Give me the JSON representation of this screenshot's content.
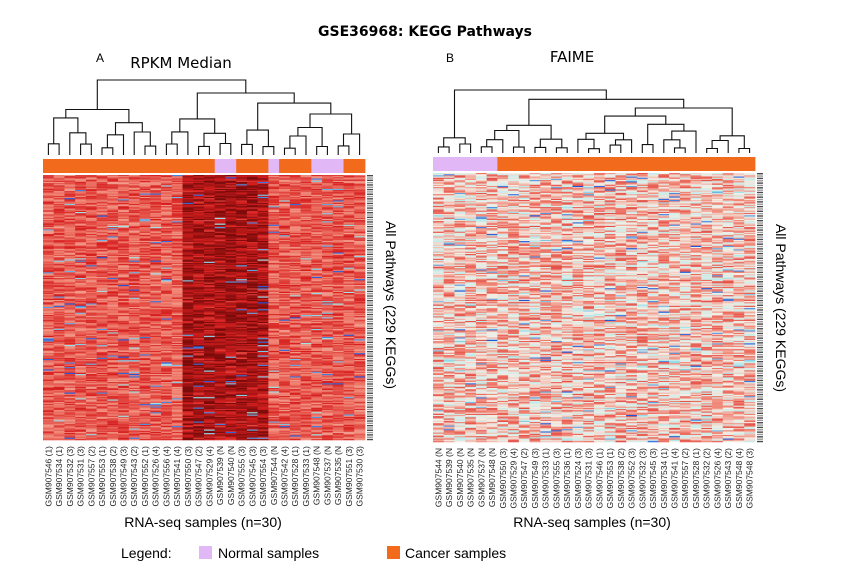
{
  "title": "GSE36968: KEGG Pathways",
  "legend": {
    "heading": "Legend:",
    "items": [
      {
        "label": "Normal samples",
        "color": "#e2b7f5",
        "key": "N"
      },
      {
        "label": "Cancer samples",
        "color": "#f26a1b",
        "key": "C"
      }
    ]
  },
  "chart_data": [
    {
      "type": "heatmap",
      "panel_letter": "A",
      "title": "RPKM Median",
      "xlabel": "RNA-seq samples (n=30)",
      "ylabel": "All Pathways (229 KEGGs)",
      "rows": 229,
      "color_scale": [
        "#1f4fd6",
        "#9fe6ea",
        "#f4efe6",
        "#f08070",
        "#d71f1f",
        "#7a0a0a"
      ],
      "samples": [
        "GSM907546 (1)",
        "GSM907534 (1)",
        "GSM907532 (3)",
        "GSM907531 (3)",
        "GSM907557 (2)",
        "GSM907553 (1)",
        "GSM907538 (2)",
        "GSM907549 (3)",
        "GSM907543 (2)",
        "GSM907552 (1)",
        "GSM907526 (4)",
        "GSM907556 (4)",
        "GSM907541 (4)",
        "GSM907550 (3)",
        "GSM907547 (2)",
        "GSM907529 (4)",
        "GSM907539 (N",
        "GSM907540 (N",
        "GSM907555 (3)",
        "GSM907545 (3)",
        "GSM907554 (3)",
        "GSM907544 (N",
        "GSM907542 (4)",
        "GSM907528 (1)",
        "GSM907533 (1)",
        "GSM907548 (N",
        "GSM907537 (N",
        "GSM907535 (N",
        "GSM907551 (3)",
        "GSM907530 (3)"
      ],
      "sample_group": [
        "C",
        "C",
        "C",
        "C",
        "C",
        "C",
        "C",
        "C",
        "C",
        "C",
        "C",
        "C",
        "C",
        "C",
        "C",
        "C",
        "N",
        "N",
        "C",
        "C",
        "C",
        "N",
        "C",
        "C",
        "C",
        "N",
        "N",
        "N",
        "C",
        "C"
      ]
    },
    {
      "type": "heatmap",
      "panel_letter": "B",
      "title": "FAIME",
      "xlabel": "RNA-seq samples (n=30)",
      "ylabel": "All Pathways (229 KEGGs)",
      "rows": 229,
      "color_scale": [
        "#1f4fd6",
        "#9fe6ea",
        "#f4efe6",
        "#f08070",
        "#d71f1f",
        "#7a0a0a"
      ],
      "samples": [
        "GSM907544 (N",
        "GSM907539 (N",
        "GSM907540 (N",
        "GSM907535 (N",
        "GSM907537 (N",
        "GSM907548 (N",
        "GSM907550 (3)",
        "GSM907529 (4)",
        "GSM907547 (2)",
        "GSM907549 (3)",
        "GSM907533 (1)",
        "GSM907555 (3)",
        "GSM907536 (1)",
        "GSM907524 (3)",
        "GSM907531 (3)",
        "GSM907546 (1)",
        "GSM907553 (1)",
        "GSM907538 (2)",
        "GSM907552 (3)",
        "GSM907532 (3)",
        "GSM907545 (3)",
        "GSM907534 (1)",
        "GSM907541 (4)",
        "GSM907557 (2)",
        "GSM907528 (1)",
        "GSM907532 (2)",
        "GSM907526 (4)",
        "GSM907543 (2)",
        "GSM907548 (4)",
        "GSM907548 (3)"
      ],
      "sample_group": [
        "N",
        "N",
        "N",
        "N",
        "N",
        "N",
        "C",
        "C",
        "C",
        "C",
        "C",
        "C",
        "C",
        "C",
        "C",
        "C",
        "C",
        "C",
        "C",
        "C",
        "C",
        "C",
        "C",
        "C",
        "C",
        "C",
        "C",
        "C",
        "C",
        "C"
      ]
    }
  ]
}
